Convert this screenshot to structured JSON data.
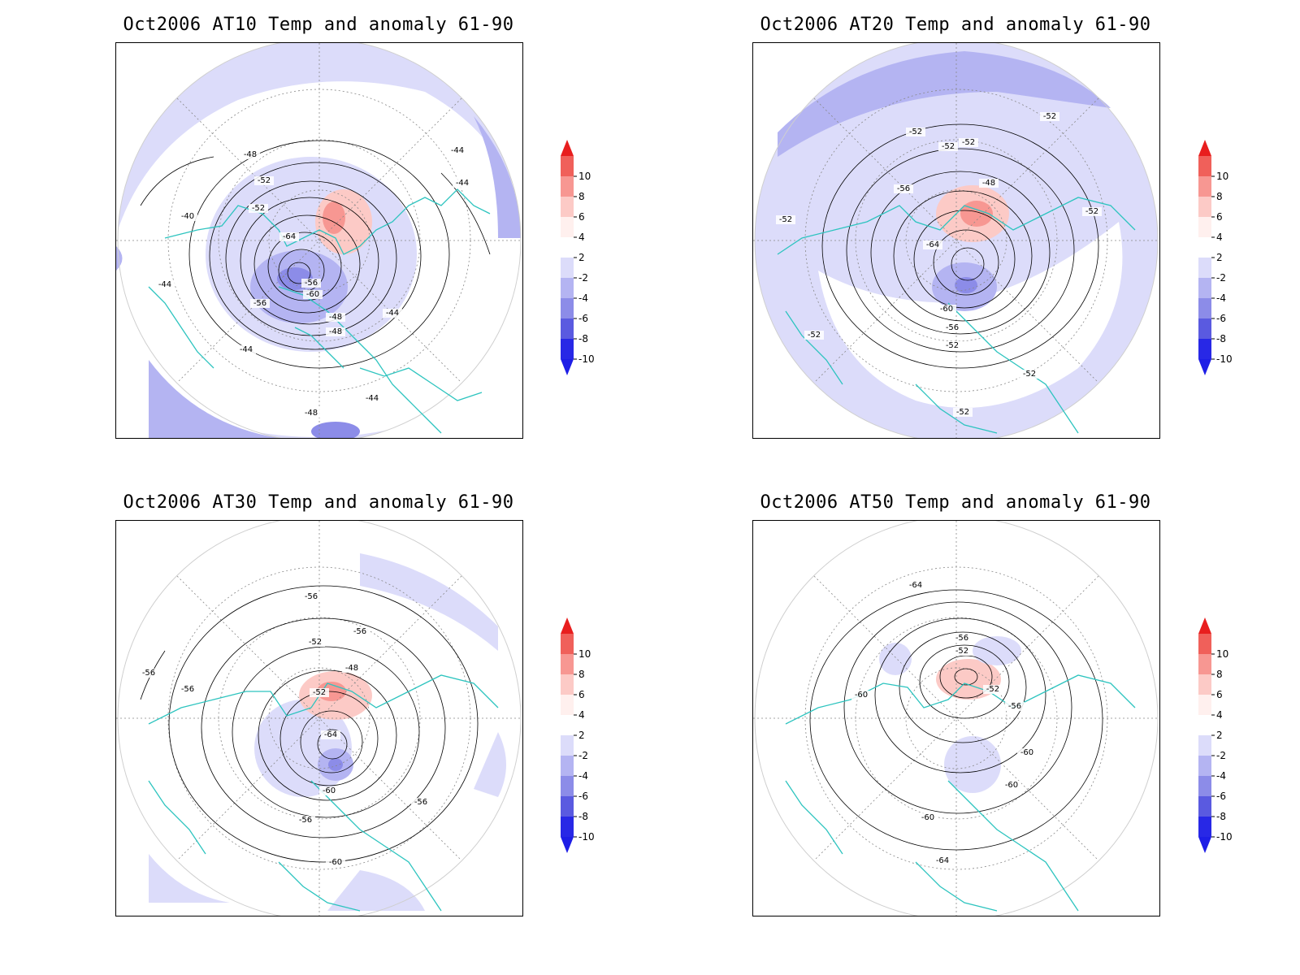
{
  "panels": [
    {
      "title": "Oct2006 AT10 Temp and anomaly 61-90",
      "labels": [
        "-40",
        "-44",
        "-44",
        "-44",
        "-44",
        "-44",
        "-44",
        "-48",
        "-48",
        "-48",
        "-48",
        "-52",
        "-52",
        "-56",
        "-56",
        "-60",
        "-64"
      ]
    },
    {
      "title": "Oct2006 AT20 Temp and anomaly 61-90",
      "labels": [
        "-48",
        "-52",
        "-52",
        "-52",
        "-52",
        "-52",
        "-52",
        "-52",
        "-52",
        "-52",
        "-52",
        "-56",
        "-56",
        "-60",
        "-64"
      ]
    },
    {
      "title": "Oct2006 AT30 Temp and anomaly 61-90",
      "labels": [
        "-48",
        "-52",
        "-52",
        "-56",
        "-56",
        "-56",
        "-56",
        "-56",
        "-56",
        "-60",
        "-60",
        "-64"
      ]
    },
    {
      "title": "Oct2006 AT50 Temp and anomaly 61-90",
      "labels": [
        "-52",
        "-52",
        "-56",
        "-56",
        "-60",
        "-60",
        "-60",
        "-60",
        "-64",
        "-64"
      ]
    }
  ],
  "colorbar": {
    "labels": [
      "10",
      "8",
      "6",
      "4",
      "2",
      "-2",
      "-4",
      "-6",
      "-8",
      "-10"
    ],
    "colors": [
      "#e81e1e",
      "#f0605a",
      "#f79792",
      "#fccac6",
      "#fff0ee",
      "#ffffff",
      "#dcdcfa",
      "#b4b4f2",
      "#8c8ce8",
      "#5a5ae0",
      "#2828e6",
      "#0000e8"
    ],
    "top_color": "#e81e1e",
    "bottom_color": "#1e1ee6"
  },
  "colors": {
    "coastline": "#2dc4bf",
    "contour": "#000000",
    "grid": "#888888"
  }
}
